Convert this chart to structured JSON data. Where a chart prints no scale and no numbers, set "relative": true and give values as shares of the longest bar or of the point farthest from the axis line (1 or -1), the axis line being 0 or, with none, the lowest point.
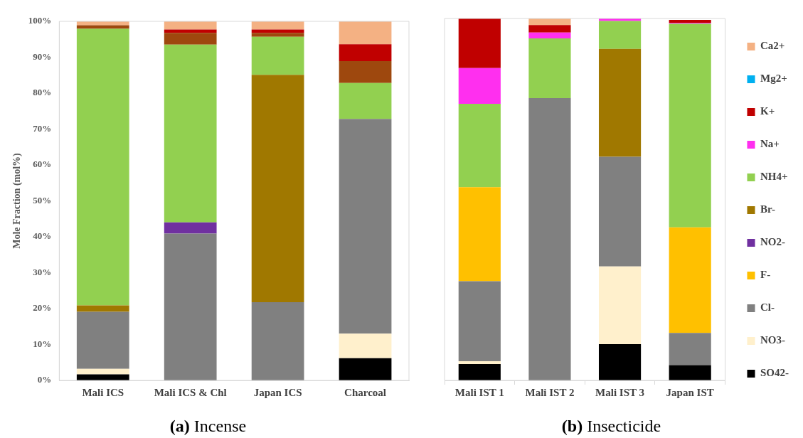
{
  "chart_data": [
    {
      "type": "bar",
      "title": "(a) Incense",
      "ylabel": "Mole Fraction (mol%)",
      "categories": [
        "Mali ICS",
        "Mali ICS & Chl",
        "Japan ICS",
        "Charcoal"
      ],
      "stacked": true,
      "legend": false,
      "ylim": [
        0,
        100
      ],
      "yticks": [
        {
          "value": 0,
          "label": "0%"
        },
        {
          "value": 10,
          "label": "10%"
        },
        {
          "value": 20,
          "label": "20%"
        },
        {
          "value": 30,
          "label": "30%"
        },
        {
          "value": 40,
          "label": "40%"
        },
        {
          "value": 50,
          "label": "50%"
        },
        {
          "value": 60,
          "label": "60%"
        },
        {
          "value": 70,
          "label": "70%"
        },
        {
          "value": 80,
          "label": "80%"
        },
        {
          "value": 90,
          "label": "90%"
        },
        {
          "value": 100,
          "label": "100%"
        }
      ],
      "series": [
        {
          "color": "#000000",
          "values": [
            1.7,
            null,
            null,
            6.2
          ]
        },
        {
          "color": "#fff0cc",
          "values": [
            1.5,
            null,
            null,
            6.8
          ]
        },
        {
          "color": "#808080",
          "values": [
            15.9,
            40.9,
            21.8,
            59.8
          ]
        },
        {
          "color": "#7030a0",
          "values": [
            null,
            3.1,
            null,
            null
          ]
        },
        {
          "color": "#a07800",
          "values": [
            1.8,
            null,
            63.3,
            null
          ]
        },
        {
          "color": "#92d050",
          "values": [
            77,
            49.5,
            10.6,
            10
          ]
        },
        {
          "color": "#9e480e",
          "values": [
            1,
            3.3,
            1.1,
            6.1
          ]
        },
        {
          "color": "#c00000",
          "values": [
            null,
            0.9,
            0.9,
            4.7
          ]
        },
        {
          "color": "#f4b183",
          "values": [
            1.1,
            2.3,
            2.3,
            6.4
          ]
        }
      ]
    },
    {
      "type": "bar",
      "title": "(b) Insecticide",
      "categories": [
        "Mali IST 1",
        "Mali IST 2",
        "Mali IST 3",
        "Japan IST"
      ],
      "stacked": true,
      "relative": true,
      "legend": "right",
      "series": [
        {
          "name": "SO42-",
          "color": "#000000",
          "values": [
            0.045,
            null,
            0.1,
            0.042
          ]
        },
        {
          "name": "NO3-",
          "color": "#fff0cc",
          "values": [
            0.008,
            null,
            0.215,
            null
          ]
        },
        {
          "name": "Cl-",
          "color": "#808080",
          "values": [
            0.221,
            0.78,
            0.303,
            0.089
          ]
        },
        {
          "name": "F-",
          "color": "#ffc000",
          "values": [
            0.26,
            null,
            null,
            0.292
          ]
        },
        {
          "name": "NO2-",
          "color": "#7030a0",
          "values": [
            null,
            null,
            null,
            null
          ]
        },
        {
          "name": "Br-",
          "color": "#a07800",
          "values": [
            null,
            null,
            0.298,
            null
          ]
        },
        {
          "name": "NH4+",
          "color": "#92d050",
          "values": [
            0.23,
            0.165,
            0.077,
            0.563
          ]
        },
        {
          "name": "Na+",
          "color": "#ff2fef",
          "values": [
            0.099,
            0.016,
            0.007,
            0.002
          ]
        },
        {
          "name": "K+",
          "color": "#c00000",
          "values": [
            0.137,
            0.021,
            null,
            0.008
          ]
        },
        {
          "name": "Mg2+",
          "color": "#00b0f0",
          "values": [
            null,
            null,
            null,
            null
          ]
        },
        {
          "name": "Ca2+",
          "color": "#f4b183",
          "values": [
            null,
            0.018,
            null,
            null
          ]
        }
      ]
    }
  ]
}
